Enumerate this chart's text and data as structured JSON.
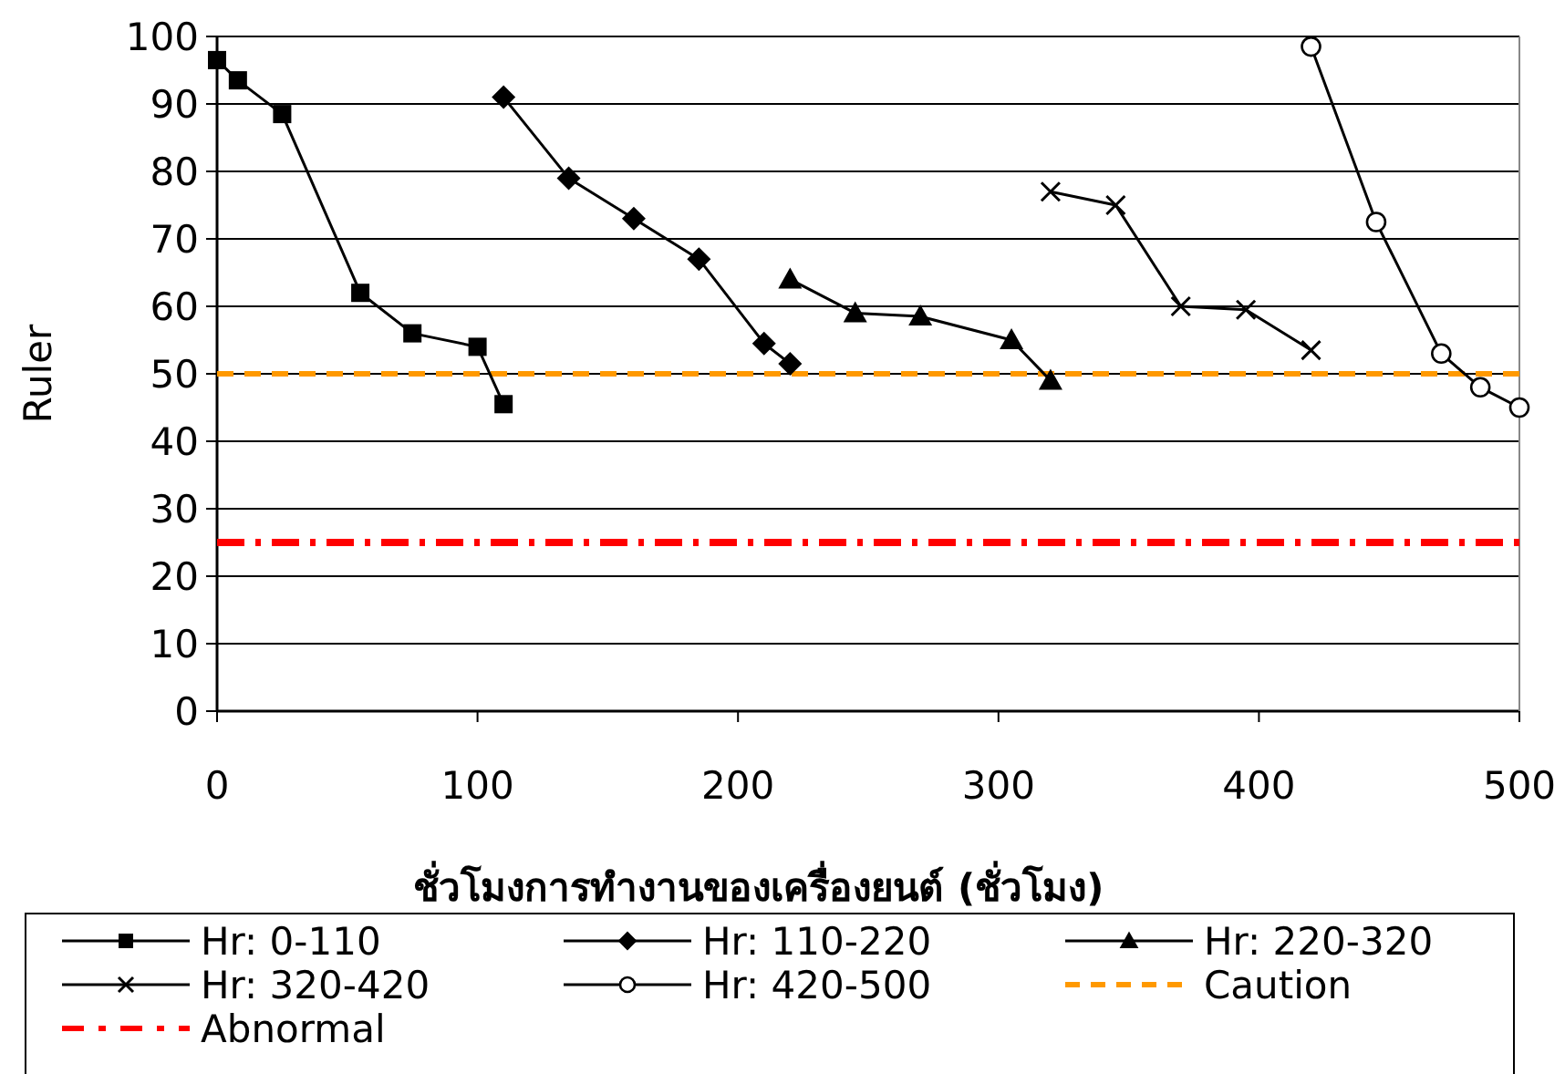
{
  "chart_data": {
    "type": "line",
    "xlabel": "ชั่วโมงการทำงานของเครื่องยนต์ (ชั่วโมง)",
    "ylabel": "Ruler",
    "xlim": [
      0,
      500
    ],
    "xticks": [
      0,
      100,
      200,
      300,
      400,
      500
    ],
    "ylim": [
      0,
      100
    ],
    "yticks": [
      0,
      10,
      20,
      30,
      40,
      50,
      60,
      70,
      80,
      90,
      100
    ],
    "grid": "y",
    "legend": "bottom",
    "line_style": "solid",
    "series": [
      {
        "name": "Hr: 0-110",
        "color": "#000000",
        "marker": "square",
        "x": [
          0,
          8,
          25,
          55,
          75,
          100,
          110
        ],
        "values": [
          96.5,
          93.5,
          88.5,
          62,
          56,
          54,
          45.5
        ]
      },
      {
        "name": "Hr: 110-220",
        "color": "#000000",
        "marker": "diamond",
        "x": [
          110,
          135,
          160,
          185,
          210,
          220
        ],
        "values": [
          91,
          79,
          73,
          67,
          54.5,
          51.5
        ]
      },
      {
        "name": "Hr: 220-320",
        "color": "#000000",
        "marker": "triangle",
        "x": [
          220,
          245,
          270,
          305,
          320
        ],
        "values": [
          64,
          59,
          58.5,
          55,
          49
        ]
      },
      {
        "name": "Hr: 320-420",
        "color": "#000000",
        "marker": "cross",
        "x": [
          320,
          345,
          370,
          395,
          420
        ],
        "values": [
          77,
          75,
          60,
          59.5,
          53.5
        ]
      },
      {
        "name": "Hr: 420-500",
        "color": "#000000",
        "marker": "circle",
        "x": [
          420,
          445,
          470,
          485,
          500
        ],
        "values": [
          98.5,
          72.5,
          53,
          48,
          45
        ]
      }
    ],
    "ref_lines": [
      {
        "axis": "y",
        "value": 50,
        "label": "Caution",
        "color": "#ff9900",
        "line_style": "dashed"
      },
      {
        "axis": "y",
        "value": 25,
        "label": "Abnormal",
        "color": "#ff0000",
        "line_style": "dashdot"
      }
    ]
  }
}
